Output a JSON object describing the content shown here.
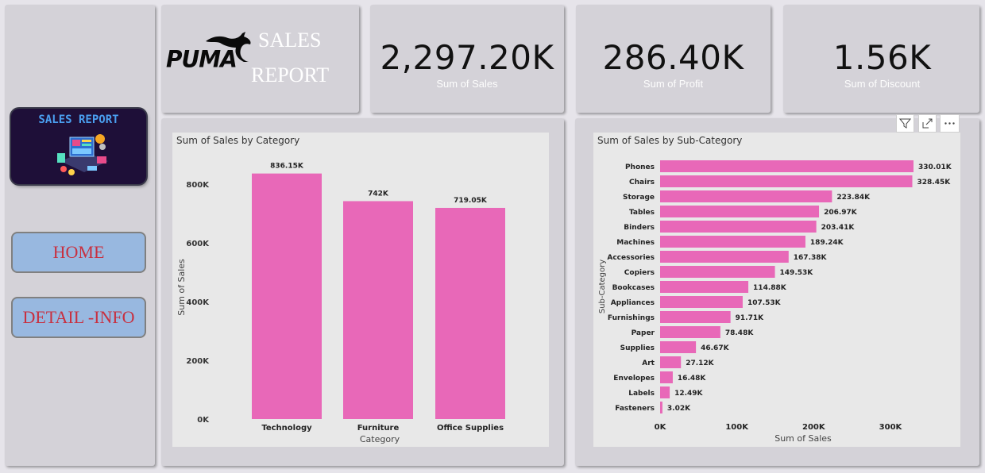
{
  "nav": {
    "banner_title": "SALES REPORT",
    "banner_icon": "dashboard-illustration",
    "home_label": "HOME",
    "detail_label": "DETAIL -INFO"
  },
  "logo": {
    "brand": "PUMA",
    "title_line1": "SALES",
    "title_line2": "REPORT"
  },
  "kpis": [
    {
      "value": "2,297.20K",
      "label": "Sum of Sales"
    },
    {
      "value": "286.40K",
      "label": "Sum of Profit"
    },
    {
      "value": "1.56K",
      "label": "Sum of Discount"
    }
  ],
  "colors": {
    "bar": "#e868b8",
    "card": "#d4d2d8",
    "page": "#e6e4ea",
    "chart_bg": "#e8e8e8",
    "nav_button": "#98b8e0",
    "nav_text": "#c83040",
    "banner": "#1e0f38"
  },
  "toolbar_icons": [
    "filter-icon",
    "focus-mode-icon",
    "more-options-icon"
  ],
  "chart_data": [
    {
      "type": "bar",
      "title": "Sum of Sales by Category",
      "categories": [
        "Technology",
        "Furniture",
        "Office Supplies"
      ],
      "values": [
        836150,
        742000,
        719050
      ],
      "value_labels": [
        "836.15K",
        "742K",
        "719.05K"
      ],
      "xlabel": "Category",
      "ylabel": "Sum of Sales",
      "ylim": [
        0,
        900000
      ],
      "yticks": [
        0,
        200000,
        400000,
        600000,
        800000
      ],
      "ytick_labels": [
        "0K",
        "200K",
        "400K",
        "600K",
        "800K"
      ],
      "grid": false
    },
    {
      "type": "bar",
      "orientation": "horizontal",
      "title": "Sum of Sales by Sub-Category",
      "categories": [
        "Phones",
        "Chairs",
        "Storage",
        "Tables",
        "Binders",
        "Machines",
        "Accessories",
        "Copiers",
        "Bookcases",
        "Appliances",
        "Furnishings",
        "Paper",
        "Supplies",
        "Art",
        "Envelopes",
        "Labels",
        "Fasteners"
      ],
      "values": [
        330010,
        328450,
        223840,
        206970,
        203410,
        189240,
        167380,
        149530,
        114880,
        107530,
        91710,
        78480,
        46670,
        27120,
        16480,
        12490,
        3020
      ],
      "value_labels": [
        "330.01K",
        "328.45K",
        "223.84K",
        "206.97K",
        "203.41K",
        "189.24K",
        "167.38K",
        "149.53K",
        "114.88K",
        "107.53K",
        "91.71K",
        "78.48K",
        "46.67K",
        "27.12K",
        "16.48K",
        "12.49K",
        "3.02K"
      ],
      "xlabel": "Sum of Sales",
      "ylabel": "Sub-Category",
      "xlim": [
        0,
        330010
      ],
      "xticks": [
        0,
        100000,
        200000,
        300000
      ],
      "xtick_labels": [
        "0K",
        "100K",
        "200K",
        "300K"
      ],
      "grid": false
    }
  ]
}
